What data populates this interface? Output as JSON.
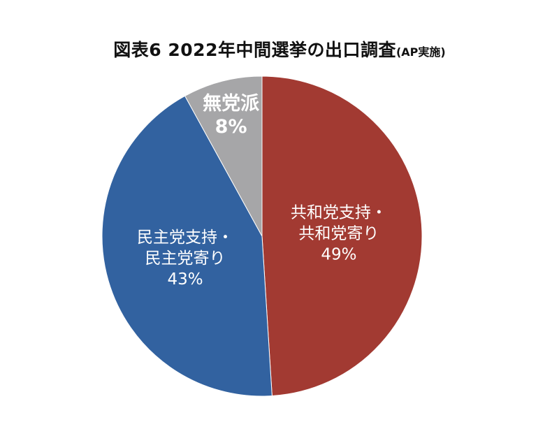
{
  "title": {
    "main": "図表6  2022年中間選挙の出口調査",
    "sub": "(AP実施)"
  },
  "chart_data": {
    "type": "pie",
    "title": "図表6  2022年中間選挙の出口調査(AP実施)",
    "start": "12 o'clock",
    "direction": "clockwise",
    "slices": [
      {
        "label_lines": [
          "共和党支持・",
          "共和党寄り"
        ],
        "value": 49,
        "value_label": "49%",
        "color": "#A23A32"
      },
      {
        "label_lines": [
          "民主党支持・",
          "民主党寄り"
        ],
        "value": 43,
        "value_label": "43%",
        "color": "#3262A0"
      },
      {
        "label_lines": [
          "無党派"
        ],
        "value": 8,
        "value_label": "8%",
        "color": "#A6A6A8"
      }
    ]
  }
}
